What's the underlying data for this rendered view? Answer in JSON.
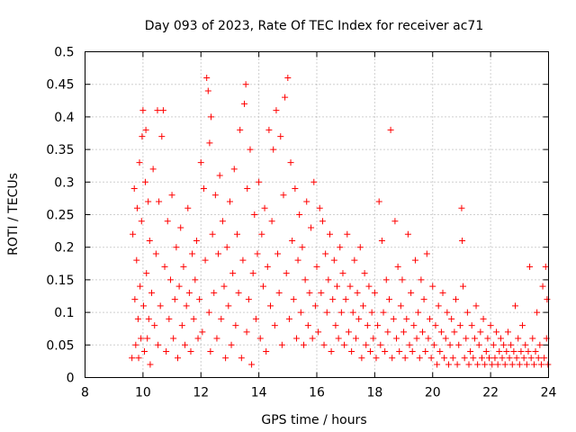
{
  "chart_data": {
    "type": "scatter",
    "title": "Day 093 of 2023, Rate Of TEC Index for receiver ac71",
    "xlabel": "GPS time / hours",
    "ylabel": "ROTI / TECUs",
    "xlim": [
      8,
      24
    ],
    "ylim": [
      0,
      0.5
    ],
    "xticks": [
      8,
      10,
      12,
      14,
      16,
      18,
      20,
      22,
      24
    ],
    "xtick_labels": [
      "8",
      "10",
      "12",
      "14",
      "16",
      "18",
      "20",
      "22",
      "24"
    ],
    "yticks": [
      0,
      0.05,
      0.1,
      0.15,
      0.2,
      0.25,
      0.3,
      0.35,
      0.4,
      0.45,
      0.5
    ],
    "ytick_labels": [
      "0",
      "0.05",
      "0.1",
      "0.15",
      "0.2",
      "0.25",
      "0.3",
      "0.35",
      "0.4",
      "0.45",
      "0.5"
    ],
    "grid": true,
    "marker": "+",
    "series": [
      {
        "name": "ROTI",
        "color": "#ff0000",
        "points": [
          [
            9.62,
            0.03
          ],
          [
            9.65,
            0.22
          ],
          [
            9.7,
            0.29
          ],
          [
            9.72,
            0.12
          ],
          [
            9.75,
            0.05
          ],
          [
            9.78,
            0.18
          ],
          [
            9.8,
            0.26
          ],
          [
            9.83,
            0.09
          ],
          [
            9.85,
            0.03
          ],
          [
            9.88,
            0.33
          ],
          [
            9.9,
            0.14
          ],
          [
            9.93,
            0.06
          ],
          [
            9.95,
            0.24
          ],
          [
            9.97,
            0.37
          ],
          [
            10.0,
            0.41
          ],
          [
            10.02,
            0.11
          ],
          [
            10.05,
            0.04
          ],
          [
            10.08,
            0.3
          ],
          [
            10.1,
            0.38
          ],
          [
            10.12,
            0.16
          ],
          [
            10.15,
            0.06
          ],
          [
            10.18,
            0.27
          ],
          [
            10.2,
            0.09
          ],
          [
            10.23,
            0.21
          ],
          [
            10.25,
            0.02
          ],
          [
            10.3,
            0.13
          ],
          [
            10.35,
            0.32
          ],
          [
            10.4,
            0.08
          ],
          [
            10.45,
            0.19
          ],
          [
            10.5,
            0.41
          ],
          [
            10.52,
            0.05
          ],
          [
            10.55,
            0.27
          ],
          [
            10.6,
            0.11
          ],
          [
            10.65,
            0.37
          ],
          [
            10.7,
            0.41
          ],
          [
            10.75,
            0.17
          ],
          [
            10.8,
            0.04
          ],
          [
            10.85,
            0.24
          ],
          [
            10.9,
            0.09
          ],
          [
            10.95,
            0.15
          ],
          [
            11.0,
            0.28
          ],
          [
            11.05,
            0.06
          ],
          [
            11.1,
            0.12
          ],
          [
            11.15,
            0.2
          ],
          [
            11.2,
            0.03
          ],
          [
            11.25,
            0.14
          ],
          [
            11.3,
            0.23
          ],
          [
            11.35,
            0.08
          ],
          [
            11.4,
            0.17
          ],
          [
            11.45,
            0.05
          ],
          [
            11.5,
            0.11
          ],
          [
            11.55,
            0.26
          ],
          [
            11.6,
            0.13
          ],
          [
            11.65,
            0.04
          ],
          [
            11.7,
            0.19
          ],
          [
            11.75,
            0.09
          ],
          [
            11.8,
            0.15
          ],
          [
            11.85,
            0.21
          ],
          [
            11.9,
            0.06
          ],
          [
            11.95,
            0.12
          ],
          [
            12.0,
            0.33
          ],
          [
            12.05,
            0.07
          ],
          [
            12.1,
            0.29
          ],
          [
            12.15,
            0.18
          ],
          [
            12.2,
            0.46
          ],
          [
            12.25,
            0.44
          ],
          [
            12.28,
            0.1
          ],
          [
            12.3,
            0.36
          ],
          [
            12.33,
            0.04
          ],
          [
            12.35,
            0.4
          ],
          [
            12.4,
            0.22
          ],
          [
            12.45,
            0.13
          ],
          [
            12.5,
            0.28
          ],
          [
            12.55,
            0.06
          ],
          [
            12.6,
            0.19
          ],
          [
            12.65,
            0.31
          ],
          [
            12.7,
            0.09
          ],
          [
            12.75,
            0.24
          ],
          [
            12.8,
            0.14
          ],
          [
            12.85,
            0.03
          ],
          [
            12.9,
            0.2
          ],
          [
            12.95,
            0.11
          ],
          [
            13.0,
            0.27
          ],
          [
            13.05,
            0.05
          ],
          [
            13.1,
            0.16
          ],
          [
            13.15,
            0.32
          ],
          [
            13.2,
            0.08
          ],
          [
            13.25,
            0.22
          ],
          [
            13.3,
            0.13
          ],
          [
            13.35,
            0.38
          ],
          [
            13.4,
            0.03
          ],
          [
            13.45,
            0.18
          ],
          [
            13.5,
            0.42
          ],
          [
            13.55,
            0.45
          ],
          [
            13.58,
            0.07
          ],
          [
            13.6,
            0.29
          ],
          [
            13.65,
            0.12
          ],
          [
            13.7,
            0.35
          ],
          [
            13.75,
            0.02
          ],
          [
            13.8,
            0.16
          ],
          [
            13.85,
            0.25
          ],
          [
            13.9,
            0.09
          ],
          [
            13.95,
            0.19
          ],
          [
            14.0,
            0.3
          ],
          [
            14.05,
            0.06
          ],
          [
            14.1,
            0.22
          ],
          [
            14.15,
            0.14
          ],
          [
            14.2,
            0.26
          ],
          [
            14.25,
            0.04
          ],
          [
            14.3,
            0.17
          ],
          [
            14.35,
            0.38
          ],
          [
            14.4,
            0.11
          ],
          [
            14.45,
            0.24
          ],
          [
            14.5,
            0.35
          ],
          [
            14.55,
            0.08
          ],
          [
            14.6,
            0.41
          ],
          [
            14.65,
            0.19
          ],
          [
            14.7,
            0.13
          ],
          [
            14.75,
            0.37
          ],
          [
            14.8,
            0.05
          ],
          [
            14.85,
            0.28
          ],
          [
            14.9,
            0.43
          ],
          [
            14.95,
            0.16
          ],
          [
            15.0,
            0.46
          ],
          [
            15.05,
            0.09
          ],
          [
            15.1,
            0.33
          ],
          [
            15.15,
            0.21
          ],
          [
            15.2,
            0.12
          ],
          [
            15.25,
            0.29
          ],
          [
            15.3,
            0.06
          ],
          [
            15.35,
            0.18
          ],
          [
            15.4,
            0.25
          ],
          [
            15.45,
            0.1
          ],
          [
            15.5,
            0.2
          ],
          [
            15.55,
            0.05
          ],
          [
            15.6,
            0.15
          ],
          [
            15.65,
            0.27
          ],
          [
            15.7,
            0.08
          ],
          [
            15.75,
            0.13
          ],
          [
            15.8,
            0.23
          ],
          [
            15.85,
            0.06
          ],
          [
            15.9,
            0.3
          ],
          [
            15.95,
            0.11
          ],
          [
            16.0,
            0.17
          ],
          [
            16.05,
            0.07
          ],
          [
            16.1,
            0.26
          ],
          [
            16.15,
            0.13
          ],
          [
            16.2,
            0.24
          ],
          [
            16.25,
            0.05
          ],
          [
            16.3,
            0.19
          ],
          [
            16.35,
            0.1
          ],
          [
            16.4,
            0.15
          ],
          [
            16.45,
            0.22
          ],
          [
            16.5,
            0.04
          ],
          [
            16.55,
            0.12
          ],
          [
            16.6,
            0.18
          ],
          [
            16.65,
            0.08
          ],
          [
            16.7,
            0.14
          ],
          [
            16.75,
            0.06
          ],
          [
            16.8,
            0.2
          ],
          [
            16.85,
            0.1
          ],
          [
            16.9,
            0.16
          ],
          [
            16.95,
            0.05
          ],
          [
            17.0,
            0.12
          ],
          [
            17.05,
            0.22
          ],
          [
            17.1,
            0.07
          ],
          [
            17.15,
            0.14
          ],
          [
            17.2,
            0.04
          ],
          [
            17.25,
            0.1
          ],
          [
            17.3,
            0.18
          ],
          [
            17.35,
            0.06
          ],
          [
            17.4,
            0.13
          ],
          [
            17.45,
            0.09
          ],
          [
            17.5,
            0.2
          ],
          [
            17.55,
            0.03
          ],
          [
            17.6,
            0.11
          ],
          [
            17.65,
            0.16
          ],
          [
            17.7,
            0.05
          ],
          [
            17.75,
            0.08
          ],
          [
            17.8,
            0.14
          ],
          [
            17.85,
            0.04
          ],
          [
            17.9,
            0.1
          ],
          [
            17.95,
            0.06
          ],
          [
            18.0,
            0.13
          ],
          [
            18.05,
            0.03
          ],
          [
            18.1,
            0.08
          ],
          [
            18.15,
            0.27
          ],
          [
            18.2,
            0.05
          ],
          [
            18.25,
            0.21
          ],
          [
            18.3,
            0.1
          ],
          [
            18.35,
            0.04
          ],
          [
            18.4,
            0.15
          ],
          [
            18.45,
            0.07
          ],
          [
            18.5,
            0.12
          ],
          [
            18.55,
            0.38
          ],
          [
            18.6,
            0.03
          ],
          [
            18.65,
            0.09
          ],
          [
            18.7,
            0.24
          ],
          [
            18.75,
            0.06
          ],
          [
            18.8,
            0.17
          ],
          [
            18.85,
            0.04
          ],
          [
            18.9,
            0.11
          ],
          [
            18.95,
            0.15
          ],
          [
            19.0,
            0.07
          ],
          [
            19.05,
            0.03
          ],
          [
            19.1,
            0.09
          ],
          [
            19.15,
            0.22
          ],
          [
            19.2,
            0.05
          ],
          [
            19.25,
            0.13
          ],
          [
            19.3,
            0.04
          ],
          [
            19.35,
            0.08
          ],
          [
            19.4,
            0.18
          ],
          [
            19.45,
            0.06
          ],
          [
            19.5,
            0.1
          ],
          [
            19.55,
            0.03
          ],
          [
            19.6,
            0.15
          ],
          [
            19.65,
            0.07
          ],
          [
            19.7,
            0.12
          ],
          [
            19.75,
            0.04
          ],
          [
            19.8,
            0.19
          ],
          [
            19.85,
            0.06
          ],
          [
            19.9,
            0.09
          ],
          [
            19.95,
            0.03
          ],
          [
            20.0,
            0.14
          ],
          [
            20.05,
            0.05
          ],
          [
            20.1,
            0.08
          ],
          [
            20.15,
            0.02
          ],
          [
            20.2,
            0.11
          ],
          [
            20.25,
            0.04
          ],
          [
            20.3,
            0.07
          ],
          [
            20.35,
            0.13
          ],
          [
            20.4,
            0.03
          ],
          [
            20.45,
            0.06
          ],
          [
            20.5,
            0.1
          ],
          [
            20.55,
            0.02
          ],
          [
            20.6,
            0.05
          ],
          [
            20.65,
            0.09
          ],
          [
            20.7,
            0.03
          ],
          [
            20.75,
            0.07
          ],
          [
            20.8,
            0.12
          ],
          [
            20.85,
            0.02
          ],
          [
            20.9,
            0.05
          ],
          [
            20.95,
            0.08
          ],
          [
            21.0,
            0.26
          ],
          [
            21.02,
            0.21
          ],
          [
            21.05,
            0.14
          ],
          [
            21.1,
            0.03
          ],
          [
            21.15,
            0.06
          ],
          [
            21.2,
            0.1
          ],
          [
            21.25,
            0.02
          ],
          [
            21.3,
            0.04
          ],
          [
            21.35,
            0.08
          ],
          [
            21.4,
            0.03
          ],
          [
            21.45,
            0.06
          ],
          [
            21.5,
            0.11
          ],
          [
            21.55,
            0.02
          ],
          [
            21.6,
            0.05
          ],
          [
            21.65,
            0.07
          ],
          [
            21.7,
            0.03
          ],
          [
            21.75,
            0.09
          ],
          [
            21.8,
            0.02
          ],
          [
            21.85,
            0.04
          ],
          [
            21.9,
            0.06
          ],
          [
            21.95,
            0.03
          ],
          [
            22.0,
            0.08
          ],
          [
            22.05,
            0.02
          ],
          [
            22.1,
            0.05
          ],
          [
            22.15,
            0.03
          ],
          [
            22.2,
            0.07
          ],
          [
            22.25,
            0.02
          ],
          [
            22.3,
            0.04
          ],
          [
            22.35,
            0.06
          ],
          [
            22.4,
            0.03
          ],
          [
            22.45,
            0.05
          ],
          [
            22.5,
            0.02
          ],
          [
            22.55,
            0.04
          ],
          [
            22.6,
            0.07
          ],
          [
            22.65,
            0.03
          ],
          [
            22.7,
            0.05
          ],
          [
            22.75,
            0.02
          ],
          [
            22.8,
            0.04
          ],
          [
            22.85,
            0.11
          ],
          [
            22.9,
            0.03
          ],
          [
            22.95,
            0.06
          ],
          [
            23.0,
            0.02
          ],
          [
            23.05,
            0.04
          ],
          [
            23.1,
            0.08
          ],
          [
            23.15,
            0.03
          ],
          [
            23.2,
            0.05
          ],
          [
            23.25,
            0.02
          ],
          [
            23.3,
            0.04
          ],
          [
            23.35,
            0.17
          ],
          [
            23.4,
            0.03
          ],
          [
            23.45,
            0.06
          ],
          [
            23.5,
            0.02
          ],
          [
            23.55,
            0.04
          ],
          [
            23.6,
            0.1
          ],
          [
            23.65,
            0.03
          ],
          [
            23.7,
            0.05
          ],
          [
            23.75,
            0.02
          ],
          [
            23.8,
            0.14
          ],
          [
            23.85,
            0.03
          ],
          [
            23.9,
            0.17
          ],
          [
            23.93,
            0.06
          ],
          [
            23.95,
            0.12
          ],
          [
            23.98,
            0.02
          ]
        ]
      }
    ]
  }
}
